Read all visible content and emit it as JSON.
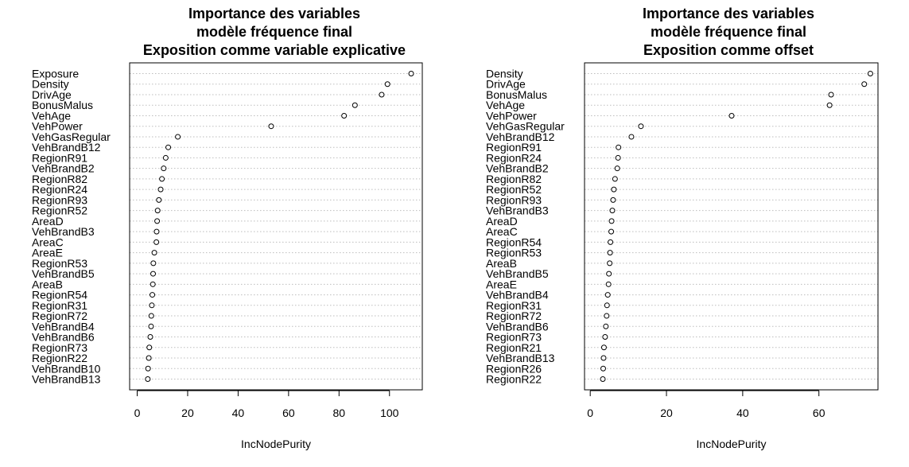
{
  "chart_data": [
    {
      "type": "scatter",
      "subtype": "dotchart",
      "title": [
        "Importance des variables",
        "modèle fréquence final",
        "Exposition comme variable explicative"
      ],
      "xlabel": "IncNodePurity",
      "ylabel": "",
      "xlim": [
        -3,
        113
      ],
      "xticks": [
        0,
        20,
        40,
        60,
        80,
        100
      ],
      "grid": "dotted horizontal lines per variable",
      "legend": "none",
      "categories": [
        "Exposure",
        "Density",
        "DrivAge",
        "BonusMalus",
        "VehAge",
        "VehPower",
        "VehGasRegular",
        "VehBrandB12",
        "RegionR91",
        "VehBrandB2",
        "RegionR82",
        "RegionR24",
        "RegionR93",
        "RegionR52",
        "AreaD",
        "VehBrandB3",
        "AreaC",
        "AreaE",
        "RegionR53",
        "VehBrandB5",
        "AreaB",
        "RegionR54",
        "RegionR31",
        "RegionR72",
        "VehBrandB4",
        "VehBrandB6",
        "RegionR73",
        "RegionR22",
        "VehBrandB10",
        "VehBrandB13"
      ],
      "values": [
        108.6,
        99.2,
        96.9,
        86.3,
        82.0,
        53.1,
        16.1,
        12.3,
        11.3,
        10.5,
        9.8,
        9.3,
        8.6,
        8.1,
        7.9,
        7.7,
        7.6,
        6.8,
        6.4,
        6.3,
        6.2,
        6.0,
        5.8,
        5.6,
        5.5,
        5.2,
        4.8,
        4.6,
        4.3,
        4.2
      ]
    },
    {
      "type": "scatter",
      "subtype": "dotchart",
      "title": [
        "Importance des variables",
        "modèle fréquence final",
        "Exposition comme offset"
      ],
      "xlabel": "IncNodePurity",
      "ylabel": "",
      "xlim": [
        -1.5,
        75.5
      ],
      "xticks": [
        0,
        20,
        40,
        60
      ],
      "grid": "dotted horizontal lines per variable",
      "legend": "none",
      "categories": [
        "Density",
        "DrivAge",
        "BonusMalus",
        "VehAge",
        "VehPower",
        "VehGasRegular",
        "VehBrandB12",
        "RegionR91",
        "RegionR24",
        "VehBrandB2",
        "RegionR82",
        "RegionR52",
        "RegionR93",
        "VehBrandB3",
        "AreaD",
        "AreaC",
        "RegionR54",
        "RegionR53",
        "AreaB",
        "VehBrandB5",
        "AreaE",
        "VehBrandB4",
        "RegionR31",
        "RegionR72",
        "VehBrandB6",
        "RegionR73",
        "RegionR21",
        "VehBrandB13",
        "RegionR26",
        "RegionR22"
      ],
      "values": [
        73.5,
        71.9,
        63.2,
        62.8,
        37.1,
        13.3,
        10.8,
        7.4,
        7.3,
        7.1,
        6.5,
        6.2,
        6.0,
        5.8,
        5.6,
        5.5,
        5.3,
        5.2,
        5.1,
        4.9,
        4.8,
        4.6,
        4.4,
        4.3,
        4.1,
        3.9,
        3.6,
        3.5,
        3.4,
        3.3
      ]
    }
  ]
}
